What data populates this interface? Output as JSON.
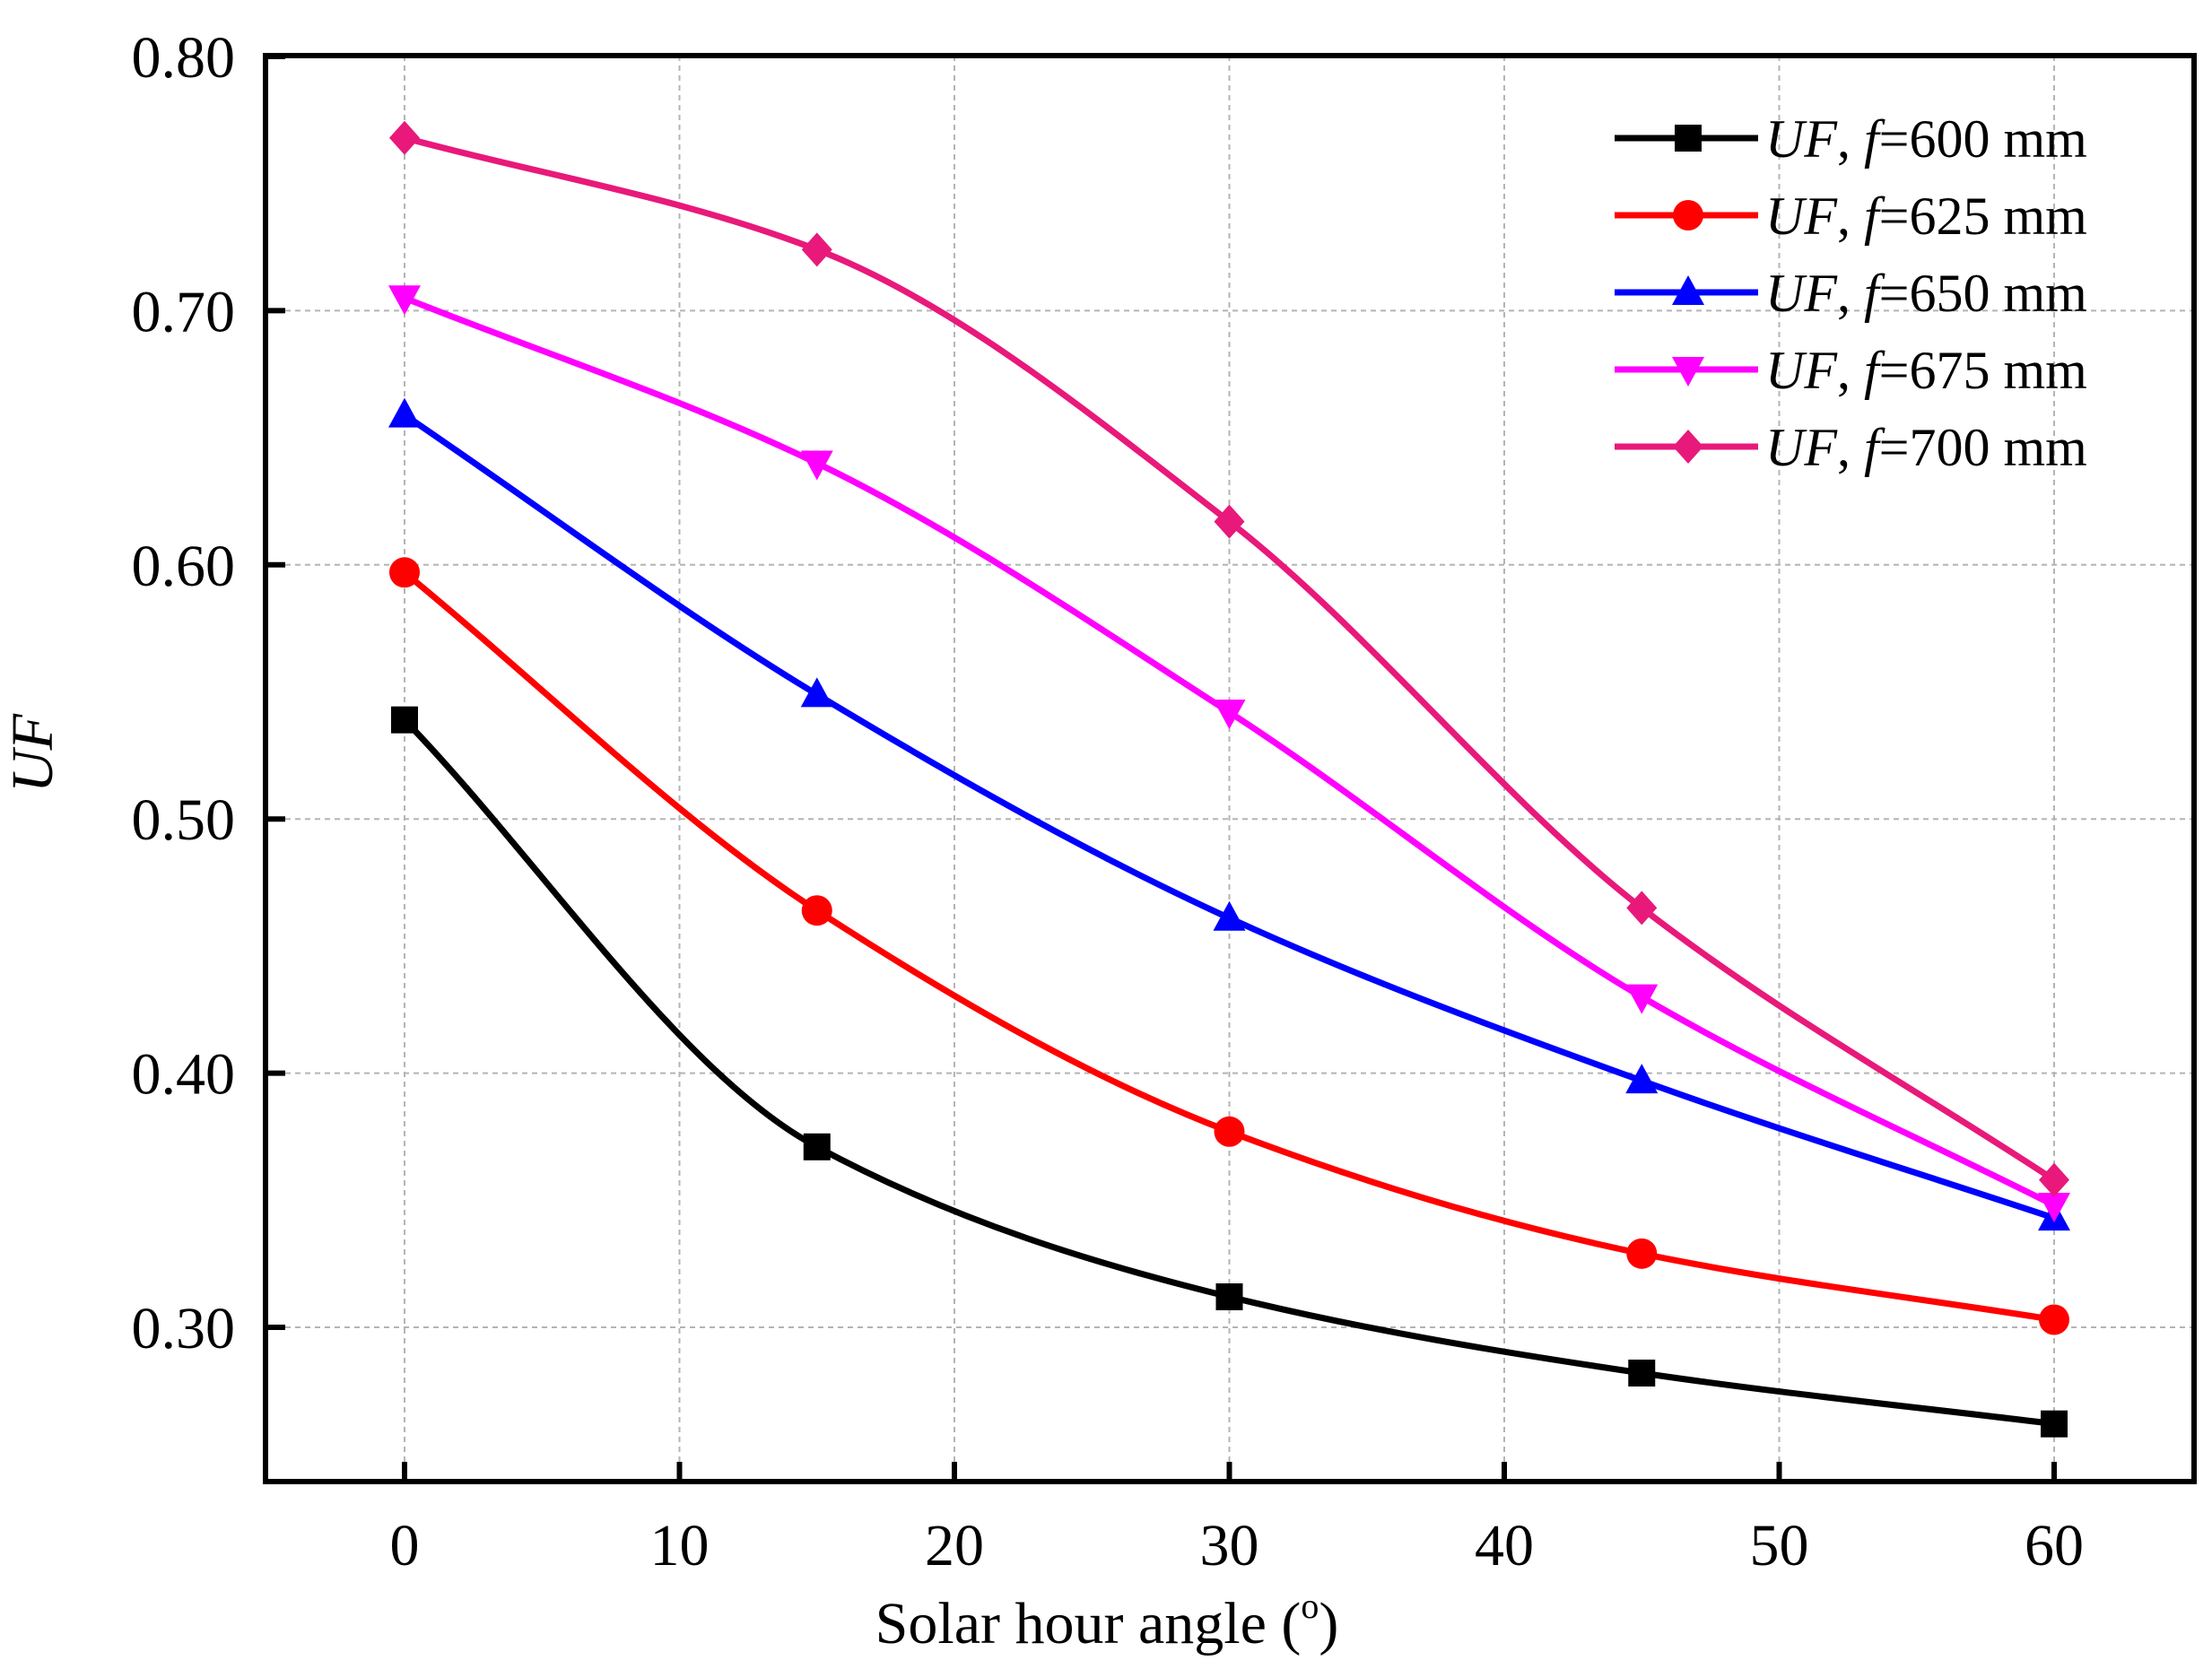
{
  "chart_data": {
    "type": "line",
    "title": "",
    "xlabel": "Solar hour angle (",
    "xlabel_sup": "o",
    "xlabel_end": ")",
    "ylabel": "UF",
    "xlim": [
      -5,
      65
    ],
    "ylim": [
      0.24,
      0.8
    ],
    "x_ticks": [
      0,
      10,
      20,
      30,
      40,
      50,
      60
    ],
    "x_tick_labels": [
      "0",
      "10",
      "20",
      "30",
      "40",
      "50",
      "60"
    ],
    "y_ticks": [
      0.3,
      0.4,
      0.5,
      0.6,
      0.7,
      0.8
    ],
    "y_tick_labels": [
      "0.30",
      "0.40",
      "0.50",
      "0.60",
      "0.70",
      "0.80"
    ],
    "grid": true,
    "legend_position": "top-right",
    "x": [
      0,
      15,
      30,
      45,
      60
    ],
    "series": [
      {
        "name": "UF, f=600 mm",
        "name_italic": "UF",
        "name_sep": ",  ",
        "name_f": "f",
        "name_rest": "=600 mm",
        "color": "#000000",
        "marker": "square",
        "values": [
          0.539,
          0.371,
          0.312,
          0.282,
          0.262
        ]
      },
      {
        "name": "UF, f=625 mm",
        "name_italic": "UF",
        "name_sep": ",  ",
        "name_f": "f",
        "name_rest": "=625 mm",
        "color": "#ff0000",
        "marker": "circle",
        "values": [
          0.597,
          0.464,
          0.377,
          0.329,
          0.303
        ]
      },
      {
        "name": "UF, f=650 mm",
        "name_italic": "UF",
        "name_sep": ",  ",
        "name_f": "f",
        "name_rest": "=650 mm",
        "color": "#0000ff",
        "marker": "triangle-up",
        "values": [
          0.659,
          0.549,
          0.461,
          0.397,
          0.343
        ]
      },
      {
        "name": "UF, f=675 mm",
        "name_italic": "UF",
        "name_sep": ",  ",
        "name_f": "f",
        "name_rest": "=675 mm",
        "color": "#ff00ff",
        "marker": "triangle-down",
        "values": [
          0.705,
          0.64,
          0.542,
          0.43,
          0.348
        ]
      },
      {
        "name": "UF, f=700 mm",
        "name_italic": "UF",
        "name_sep": ",  ",
        "name_f": "f",
        "name_rest": "=700 mm",
        "color": "#e8197a",
        "marker": "diamond",
        "values": [
          0.768,
          0.724,
          0.617,
          0.465,
          0.358
        ]
      }
    ]
  }
}
